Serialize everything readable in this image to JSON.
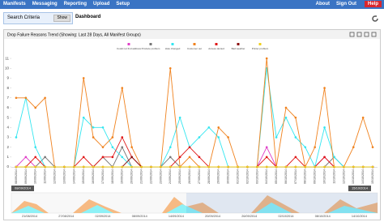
{
  "nav": {
    "left": [
      "Manifests",
      "Messaging",
      "Reporting",
      "Upload",
      "Setup"
    ],
    "right": [
      "About",
      "Sign Out"
    ],
    "help": "Help"
  },
  "search": {
    "label": "Search Criteria",
    "button": "Show"
  },
  "page_title": "Dashboard",
  "panel_title": "Drop Failure Reasons Trend (Showing: Last 28 Days, All Manifest Groups)",
  "chart_data": {
    "type": "line",
    "categories": [
      "08/09/2014",
      "09/09/2014",
      "10/09/2014",
      "11/09/2014",
      "12/09/2014",
      "13/09/2014",
      "14/09/2014",
      "15/09/2014",
      "16/09/2014",
      "17/09/2014",
      "18/09/2014",
      "19/09/2014",
      "20/09/2014",
      "21/09/2014",
      "22/09/2014",
      "23/09/2014",
      "24/09/2014",
      "25/09/2014",
      "26/09/2014",
      "27/09/2014",
      "28/09/2014",
      "29/09/2014",
      "30/09/2014",
      "01/10/2014",
      "02/10/2014",
      "03/10/2014",
      "04/10/2014",
      "05/10/2014",
      "06/10/2014",
      "07/10/2014",
      "08/10/2014",
      "09/10/2014",
      "10/10/2014",
      "11/10/2014",
      "12/10/2014",
      "13/10/2014",
      "14/10/2014",
      "15/10/2014"
    ],
    "series": [
      {
        "name": "Could not find address",
        "color": "#e040c8",
        "values": [
          0,
          1,
          0,
          0,
          0,
          0,
          0,
          0,
          0,
          0,
          0,
          0,
          0,
          0,
          0,
          0,
          0,
          0,
          0,
          0,
          0,
          0,
          0,
          0,
          0,
          0,
          2,
          0,
          0,
          0,
          0,
          0,
          1,
          0,
          0,
          0,
          0,
          0
        ]
      },
      {
        "name": "Produce problem",
        "color": "#777777",
        "values": [
          0,
          0,
          0,
          1,
          0,
          0,
          0,
          0,
          0,
          1,
          0,
          2,
          0,
          0,
          0,
          0,
          1,
          0,
          0,
          0,
          0,
          0,
          0,
          0,
          0,
          0,
          0,
          0,
          0,
          0,
          0,
          0,
          0,
          1,
          0,
          0,
          0,
          0
        ]
      },
      {
        "name": "Hole changed",
        "color": "#33e6f0",
        "values": [
          3,
          7,
          2,
          0,
          0,
          0,
          0,
          5,
          4,
          4,
          2,
          1,
          0,
          0,
          0,
          0,
          2,
          5,
          2,
          3,
          4,
          3,
          0,
          0,
          0,
          0,
          10,
          3,
          5,
          3,
          2,
          0,
          4,
          1,
          0,
          0,
          0,
          0
        ]
      },
      {
        "name": "Customer out",
        "color": "#f0821e",
        "values": [
          7,
          7,
          6,
          7,
          0,
          0,
          0,
          9,
          3,
          2,
          3,
          8,
          2,
          0,
          0,
          0,
          10,
          0,
          1,
          0,
          0,
          4,
          3,
          0,
          0,
          0,
          11,
          0,
          6,
          5,
          0,
          2,
          8,
          0,
          0,
          2,
          5,
          2
        ]
      },
      {
        "name": "Access denied",
        "color": "#e01818",
        "values": [
          0,
          0,
          1,
          0,
          0,
          0,
          0,
          1,
          0,
          1,
          1,
          3,
          1,
          0,
          0,
          0,
          0,
          1,
          2,
          1,
          0,
          0,
          0,
          0,
          0,
          0,
          1,
          0,
          0,
          1,
          0,
          0,
          1,
          0,
          0,
          0,
          0,
          0
        ]
      },
      {
        "name": "Bad weather",
        "color": "#8b1010",
        "values": [
          0,
          0,
          0,
          0,
          0,
          0,
          0,
          0,
          0,
          0,
          0,
          0,
          1,
          0,
          0,
          0,
          0,
          0,
          0,
          0,
          0,
          0,
          0,
          0,
          0,
          0,
          0,
          0,
          0,
          0,
          0,
          0,
          0,
          0,
          0,
          0,
          0,
          0
        ]
      },
      {
        "name": "Printer problem",
        "color": "#f0d020",
        "values": [
          0,
          0,
          0,
          0,
          0,
          0,
          0,
          0,
          0,
          0,
          0,
          0,
          0,
          0,
          0,
          0,
          0,
          0,
          0,
          0,
          0,
          0,
          0,
          0,
          0,
          0,
          0,
          0,
          0,
          0,
          0,
          0,
          0,
          0,
          0,
          0,
          0,
          0
        ]
      }
    ],
    "ylim": [
      0,
      11.5
    ],
    "yticks": [
      0,
      1,
      2,
      3,
      4,
      5,
      6,
      7,
      8,
      9,
      10,
      11
    ],
    "grid": false
  },
  "navigator": {
    "labels": [
      "21/08/2014",
      "27/08/2014",
      "02/09/2014",
      "08/09/2014",
      "14/09/2014",
      "20/09/2014",
      "26/09/2014",
      "02/10/2014",
      "08/10/2014",
      "14/10/2014"
    ],
    "range_start": "08/09/2014",
    "range_end": "15/10/2014"
  }
}
